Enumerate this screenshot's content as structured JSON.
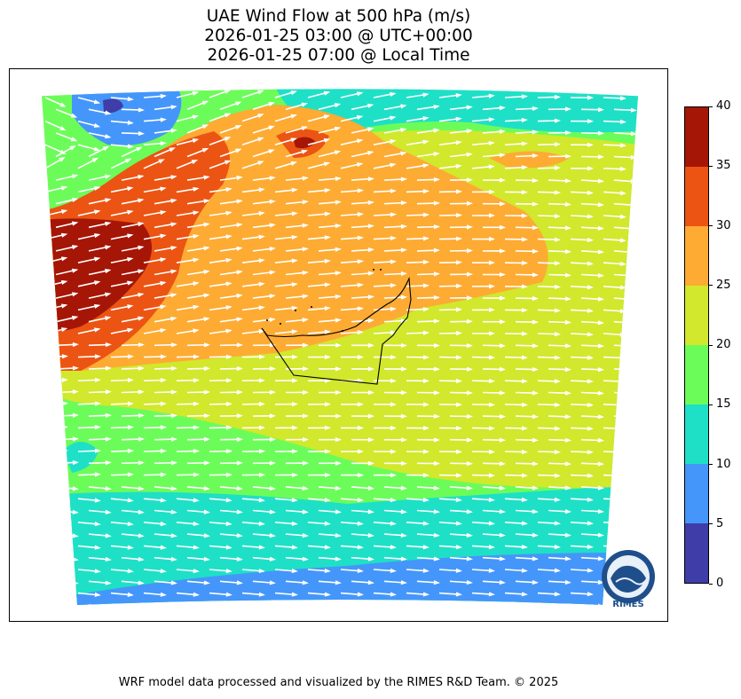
{
  "title": {
    "line1": "UAE Wind Flow at 500 hPa (m/s)",
    "line2": "2026-01-25 03:00 @ UTC+00:00",
    "line3": "2026-01-25 07:00 @ Local Time"
  },
  "colorbar": {
    "labels": [
      "0",
      "5",
      "10",
      "15",
      "20",
      "25",
      "30",
      "35",
      "40"
    ],
    "colors": [
      "#3f3da7",
      "#4596fa",
      "#1ee0c7",
      "#6cfc59",
      "#d1e82c",
      "#fdab33",
      "#ec5413",
      "#a51606"
    ]
  },
  "logo": {
    "text": "RIMES",
    "ring_text": "Regional Integrated Multi-Hazard Early Warning System"
  },
  "footer": {
    "credit": "WRF model data processed and visualized by the RIMES R&D Team. © 2025"
  }
}
